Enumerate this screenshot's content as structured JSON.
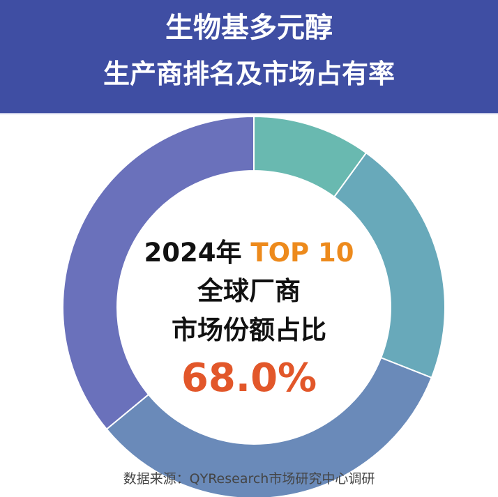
{
  "header": {
    "title_line1": "生物基多元醇",
    "title_line2": "生产商排名及市场占有率"
  },
  "center": {
    "year_prefix": "2024年",
    "top_label": "TOP 10",
    "line2": "全球厂商",
    "line3": "市场份额占比",
    "value": "68.0%"
  },
  "source": "数据来源：QYResearch市场研究中心调研",
  "colors": {
    "header_bg": "#3f4ea3",
    "top_label": "#ed8a1c",
    "value": "#e2572a"
  },
  "chart_data": {
    "type": "pie",
    "style": "donut",
    "categories": [
      "",
      "",
      "",
      ""
    ],
    "values": [
      10,
      21,
      33,
      36
    ],
    "colors": [
      "#69b9b0",
      "#68a9ba",
      "#6a8ab9",
      "#6a71bb"
    ]
  }
}
